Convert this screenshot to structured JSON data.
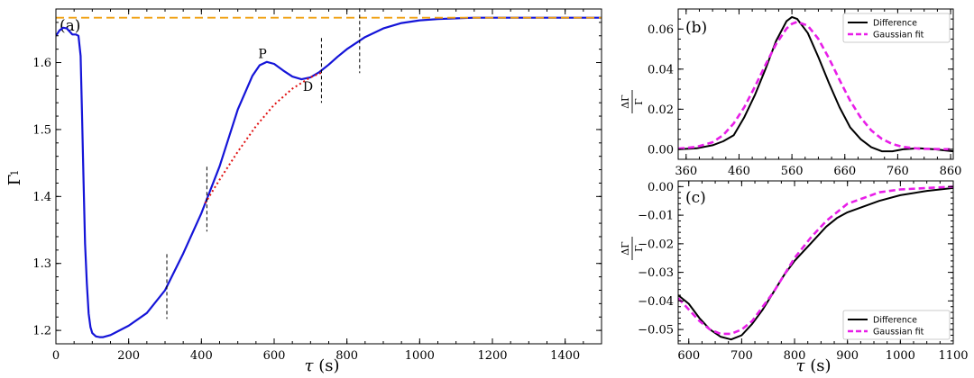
{
  "chart_data": [
    {
      "panel": "(a)",
      "type": "line",
      "xlabel": "τ (s)",
      "ylabel": "Γ₁",
      "xlim": [
        0,
        1500
      ],
      "ylim": [
        1.18,
        1.68
      ],
      "xticks": [
        "0",
        "200",
        "400",
        "600",
        "800",
        "1000",
        "1200",
        "1400"
      ],
      "yticks": [
        "1.2",
        "1.3",
        "1.4",
        "1.5",
        "1.6"
      ],
      "colors": {
        "curve": "#1414d8",
        "fit": "#e01010",
        "asymptote": "#f0a010",
        "marker": "#000000"
      },
      "series": [
        {
          "style": "solid-blue",
          "x": [
            0,
            10,
            20,
            30,
            45,
            55,
            62,
            68,
            72,
            76,
            80,
            85,
            90,
            95,
            100,
            110,
            120,
            130,
            150,
            200,
            250,
            300,
            350,
            400,
            450,
            500,
            540,
            560,
            580,
            600,
            625,
            650,
            675,
            700,
            725,
            750,
            775,
            800,
            850,
            900,
            950,
            1000,
            1050,
            1100,
            1150,
            1200,
            1300,
            1400,
            1500
          ],
          "y": [
            1.64,
            1.648,
            1.652,
            1.651,
            1.642,
            1.642,
            1.64,
            1.61,
            1.52,
            1.42,
            1.33,
            1.27,
            1.225,
            1.205,
            1.196,
            1.191,
            1.19,
            1.19,
            1.193,
            1.207,
            1.226,
            1.26,
            1.315,
            1.375,
            1.445,
            1.53,
            1.58,
            1.596,
            1.601,
            1.598,
            1.588,
            1.579,
            1.575,
            1.578,
            1.586,
            1.597,
            1.609,
            1.62,
            1.638,
            1.651,
            1.659,
            1.663,
            1.665,
            1.666,
            1.667,
            1.667,
            1.667,
            1.667,
            1.667
          ]
        },
        {
          "style": "dotted-red",
          "x": [
            410,
            450,
            500,
            550,
            600,
            650,
            700,
            730
          ],
          "y": [
            1.39,
            1.425,
            1.467,
            1.505,
            1.537,
            1.561,
            1.578,
            1.585
          ]
        },
        {
          "style": "dashed-orange",
          "x": [
            0,
            1500
          ],
          "y": [
            1.667,
            1.667
          ]
        }
      ],
      "vlines": [
        305,
        415,
        730,
        835
      ],
      "annotations": [
        {
          "text": "P",
          "x": 568,
          "y": 1.607
        },
        {
          "text": "D",
          "x": 693,
          "y": 1.558
        }
      ]
    },
    {
      "panel": "(b)",
      "type": "line",
      "xlabel": "",
      "ylabel": "ΔΓ₁/Γ₁",
      "xlim": [
        345,
        865
      ],
      "ylim": [
        -0.005,
        0.07
      ],
      "xticks": [
        "360",
        "460",
        "560",
        "660",
        "760",
        "860"
      ],
      "yticks": [
        "0.00",
        "0.02",
        "0.04",
        "0.06"
      ],
      "legend": {
        "position": "top-right",
        "entries": [
          "Difference",
          "Gaussian fit"
        ]
      },
      "series": [
        {
          "name": "Difference",
          "color": "#000000",
          "x": [
            345,
            380,
            410,
            430,
            450,
            470,
            490,
            510,
            530,
            550,
            560,
            570,
            590,
            610,
            630,
            650,
            670,
            690,
            710,
            730,
            750,
            770,
            800,
            830,
            865
          ],
          "y": [
            0.0,
            0.0005,
            0.002,
            0.004,
            0.007,
            0.016,
            0.027,
            0.04,
            0.054,
            0.064,
            0.066,
            0.065,
            0.058,
            0.046,
            0.033,
            0.021,
            0.011,
            0.005,
            0.001,
            -0.001,
            -0.001,
            0.0,
            0.0005,
            0.0,
            -0.001
          ]
        },
        {
          "name": "Gaussian fit",
          "color": "#e81ee8",
          "x": [
            345,
            380,
            410,
            430,
            450,
            470,
            490,
            510,
            530,
            550,
            560,
            570,
            590,
            610,
            630,
            650,
            670,
            690,
            710,
            730,
            750,
            770,
            800,
            830,
            865
          ],
          "y": [
            0.0003,
            0.0012,
            0.0035,
            0.0071,
            0.0129,
            0.021,
            0.0312,
            0.0421,
            0.0525,
            0.0603,
            0.0626,
            0.0636,
            0.0617,
            0.0551,
            0.0454,
            0.0346,
            0.0243,
            0.0158,
            0.0094,
            0.0052,
            0.0026,
            0.0012,
            0.0003,
            0.0001,
            0.0
          ]
        }
      ]
    },
    {
      "panel": "(c)",
      "type": "line",
      "xlabel": "τ (s)",
      "ylabel": "ΔΓ₁/Γ₁",
      "xlim": [
        580,
        1100
      ],
      "ylim": [
        -0.055,
        0.002
      ],
      "xticks": [
        "600",
        "700",
        "800",
        "900",
        "1000",
        "1100"
      ],
      "yticks": [
        "0.00",
        "−0.01",
        "−0.02",
        "−0.03",
        "−0.04",
        "−0.05"
      ],
      "legend": {
        "position": "bottom-right",
        "entries": [
          "Difference",
          "Gaussian fit"
        ]
      },
      "series": [
        {
          "name": "Difference",
          "color": "#000000",
          "x": [
            580,
            600,
            620,
            640,
            660,
            680,
            700,
            720,
            740,
            760,
            780,
            800,
            830,
            860,
            880,
            900,
            930,
            960,
            1000,
            1050,
            1100
          ],
          "y": [
            -0.038,
            -0.041,
            -0.046,
            -0.05,
            -0.0525,
            -0.0535,
            -0.052,
            -0.048,
            -0.043,
            -0.037,
            -0.031,
            -0.026,
            -0.02,
            -0.014,
            -0.011,
            -0.009,
            -0.007,
            -0.005,
            -0.003,
            -0.0015,
            -0.0005
          ]
        },
        {
          "name": "Gaussian fit",
          "color": "#e81ee8",
          "x": [
            580,
            600,
            620,
            640,
            660,
            680,
            700,
            720,
            740,
            760,
            780,
            800,
            830,
            860,
            880,
            900,
            930,
            960,
            1000,
            1050,
            1100
          ],
          "y": [
            -0.039,
            -0.043,
            -0.047,
            -0.05,
            -0.0515,
            -0.0515,
            -0.05,
            -0.047,
            -0.042,
            -0.037,
            -0.031,
            -0.025,
            -0.018,
            -0.012,
            -0.009,
            -0.006,
            -0.004,
            -0.002,
            -0.001,
            -0.0005,
            0.0
          ]
        }
      ]
    }
  ]
}
